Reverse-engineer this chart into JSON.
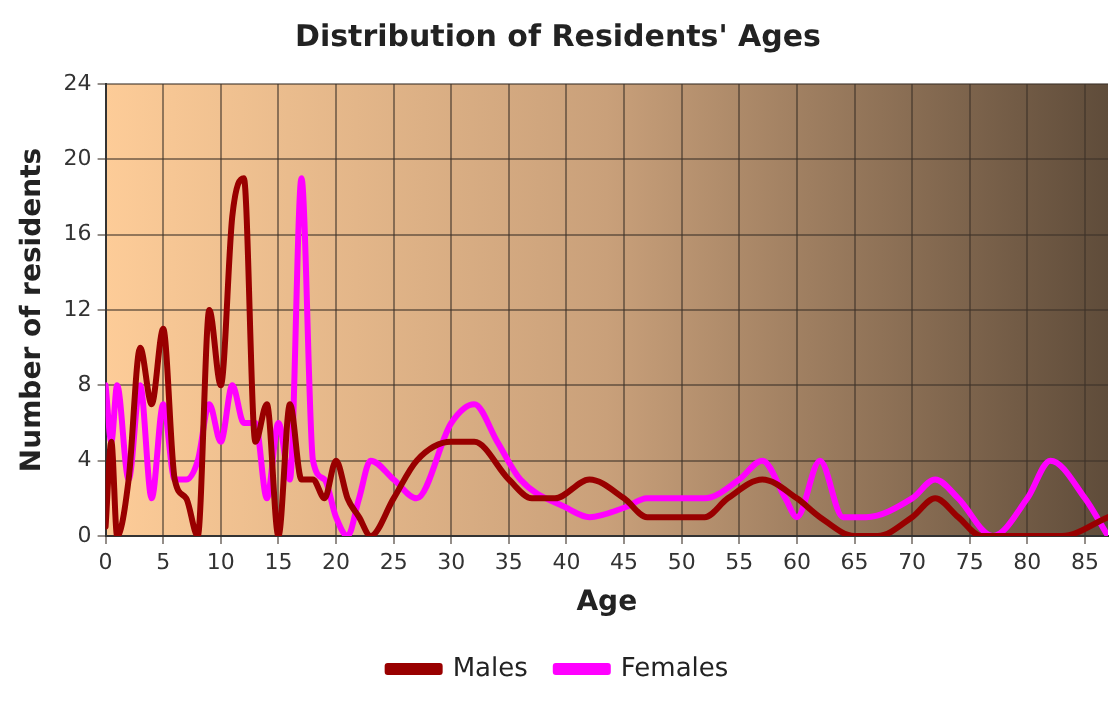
{
  "chart_data": {
    "type": "line",
    "title": "Distribution of Residents' Ages",
    "xlabel": "Age",
    "ylabel": "Number of residents",
    "xlim": [
      0,
      87
    ],
    "xticks": [
      0,
      5,
      10,
      15,
      20,
      25,
      30,
      35,
      40,
      45,
      50,
      55,
      60,
      65,
      70,
      75,
      80,
      85
    ],
    "ylim": [
      0,
      24
    ],
    "yticks": [
      0,
      4,
      8,
      12,
      16,
      20,
      24
    ],
    "grid": true,
    "legend": "bottom",
    "marker": "none",
    "line_style": "solid",
    "series": [
      {
        "name": "Males",
        "color": "#990000",
        "x": [
          0,
          0.5,
          1,
          2,
          3,
          4,
          5,
          6,
          7,
          8,
          9,
          10,
          11,
          12,
          13,
          14,
          15,
          16,
          17,
          18,
          19,
          20,
          21,
          22,
          23,
          25,
          27,
          30,
          32,
          35,
          37,
          39,
          42,
          45,
          47,
          50,
          52,
          54,
          57,
          60,
          62,
          65,
          67,
          70,
          72,
          74,
          76,
          80,
          83,
          87
        ],
        "values": [
          0.5,
          5,
          0,
          3,
          10,
          7,
          11,
          3,
          2,
          0,
          12,
          8,
          17,
          19,
          5,
          7,
          0,
          7,
          3,
          3,
          2,
          4,
          2,
          1,
          0,
          2,
          4,
          5,
          5,
          3,
          2,
          2,
          3,
          2,
          1,
          1,
          1,
          2,
          3,
          2,
          1,
          0,
          0,
          1,
          2,
          1,
          0,
          0,
          0,
          1
        ]
      },
      {
        "name": "Females",
        "color": "#ff00ff",
        "x": [
          0,
          0.5,
          1,
          2,
          3,
          4,
          5,
          6,
          7,
          8,
          9,
          10,
          11,
          12,
          13,
          14,
          15,
          16,
          17,
          18,
          19,
          20,
          21,
          22,
          23,
          25,
          27,
          30,
          32,
          34,
          36,
          40,
          42,
          45,
          47,
          50,
          52,
          55,
          57,
          59,
          60,
          62,
          64,
          66,
          70,
          72,
          74,
          77,
          80,
          82,
          85,
          87
        ],
        "values": [
          8,
          5,
          8,
          3,
          8,
          2,
          7,
          3,
          3,
          4,
          7,
          5,
          8,
          6,
          6,
          2,
          6,
          3,
          19,
          4,
          3,
          1,
          0,
          2,
          4,
          3,
          2,
          6,
          7,
          5,
          3,
          1.5,
          1,
          1.5,
          2,
          2,
          2,
          3,
          4,
          2,
          1,
          4,
          1,
          1,
          2,
          3,
          2,
          0,
          2,
          4,
          2,
          0
        ]
      }
    ]
  }
}
